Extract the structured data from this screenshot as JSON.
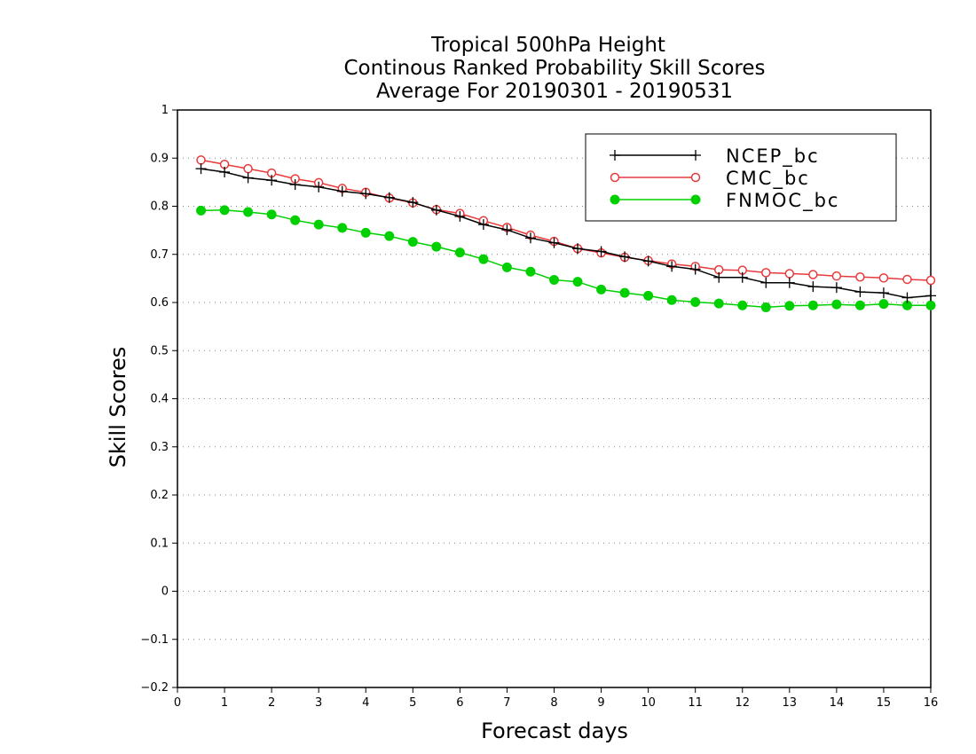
{
  "chart_data": {
    "type": "line",
    "title": [
      "Tropical 500hPa Height",
      "Continous Ranked Probability Skill Scores",
      "Average For 20190301 - 20190531"
    ],
    "xlabel": "Forecast days",
    "ylabel": "Skill Scores",
    "xlim": [
      0,
      16
    ],
    "ylim": [
      -0.2,
      1
    ],
    "xticks": [
      0,
      1,
      2,
      3,
      4,
      5,
      6,
      7,
      8,
      9,
      10,
      11,
      12,
      13,
      14,
      15,
      16
    ],
    "yticks": [
      -0.2,
      -0.1,
      0,
      0.1,
      0.2,
      0.3,
      0.4,
      0.5,
      0.6,
      0.7,
      0.8,
      0.9,
      1
    ],
    "ytick_labels": [
      "−0.2",
      "−0.1",
      "0",
      "0.1",
      "0.2",
      "0.3",
      "0.4",
      "0.5",
      "0.6",
      "0.7",
      "0.8",
      "0.9",
      "1"
    ],
    "grid": "horizontal dotted",
    "legend_position": "top-right",
    "x": [
      0.5,
      1,
      1.5,
      2,
      2.5,
      3,
      3.5,
      4,
      4.5,
      5,
      5.5,
      6,
      6.5,
      7,
      7.5,
      8,
      8.5,
      9,
      9.5,
      10,
      10.5,
      11,
      11.5,
      12,
      12.5,
      13,
      13.5,
      14,
      14.5,
      15,
      15.5,
      16
    ],
    "series": [
      {
        "name": "NCEP_bc",
        "color": "#000000",
        "marker": "plus",
        "values": [
          0.878,
          0.871,
          0.859,
          0.854,
          0.845,
          0.84,
          0.831,
          0.826,
          0.818,
          0.808,
          0.792,
          0.779,
          0.762,
          0.751,
          0.734,
          0.724,
          0.712,
          0.706,
          0.695,
          0.686,
          0.675,
          0.669,
          0.652,
          0.652,
          0.641,
          0.641,
          0.633,
          0.631,
          0.622,
          0.62,
          0.61,
          0.614
        ]
      },
      {
        "name": "CMC_bc",
        "color": "#e8393b",
        "marker": "open-circle",
        "values": [
          0.896,
          0.887,
          0.878,
          0.869,
          0.857,
          0.849,
          0.837,
          0.829,
          0.817,
          0.807,
          0.793,
          0.785,
          0.77,
          0.756,
          0.74,
          0.727,
          0.712,
          0.703,
          0.694,
          0.687,
          0.68,
          0.675,
          0.668,
          0.667,
          0.662,
          0.66,
          0.658,
          0.655,
          0.653,
          0.651,
          0.648,
          0.646
        ]
      },
      {
        "name": "FNMOC_bc",
        "color": "#00d000",
        "marker": "filled-circle",
        "values": [
          0.791,
          0.792,
          0.788,
          0.783,
          0.771,
          0.762,
          0.755,
          0.745,
          0.738,
          0.726,
          0.716,
          0.704,
          0.69,
          0.673,
          0.664,
          0.647,
          0.643,
          0.627,
          0.62,
          0.614,
          0.605,
          0.601,
          0.598,
          0.594,
          0.59,
          0.593,
          0.594,
          0.596,
          0.594,
          0.597,
          0.594,
          0.594
        ]
      }
    ]
  }
}
